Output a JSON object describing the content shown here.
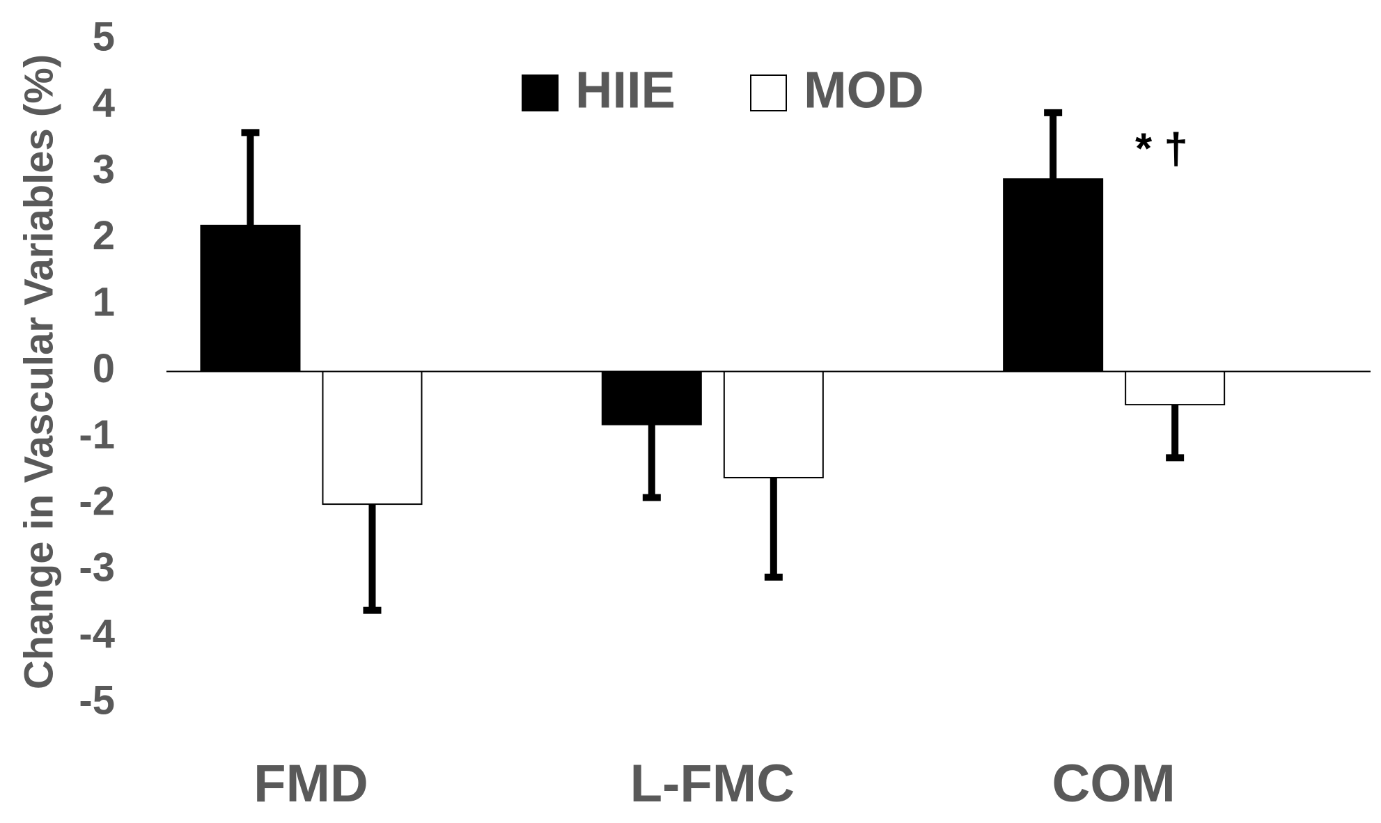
{
  "chart_data": {
    "type": "bar",
    "ylabel": "Change in Vascular Variables (%)",
    "categories": [
      "FMD",
      "L-FMC",
      "COM"
    ],
    "series": [
      {
        "name": "HIIE",
        "color": "#000000",
        "values": [
          2.2,
          -0.8,
          2.9
        ],
        "errors": [
          1.4,
          1.1,
          1.0
        ]
      },
      {
        "name": "MOD",
        "color": "#ffffff",
        "values": [
          -2.0,
          -1.6,
          -0.5
        ],
        "errors": [
          1.6,
          1.5,
          0.8
        ]
      }
    ],
    "annotation": "* †",
    "ylim": [
      -5,
      5
    ],
    "yticks": [
      -5,
      -4,
      -3,
      -2,
      -1,
      0,
      1,
      2,
      3,
      4,
      5
    ],
    "legend": "top-center",
    "grid": false
  }
}
